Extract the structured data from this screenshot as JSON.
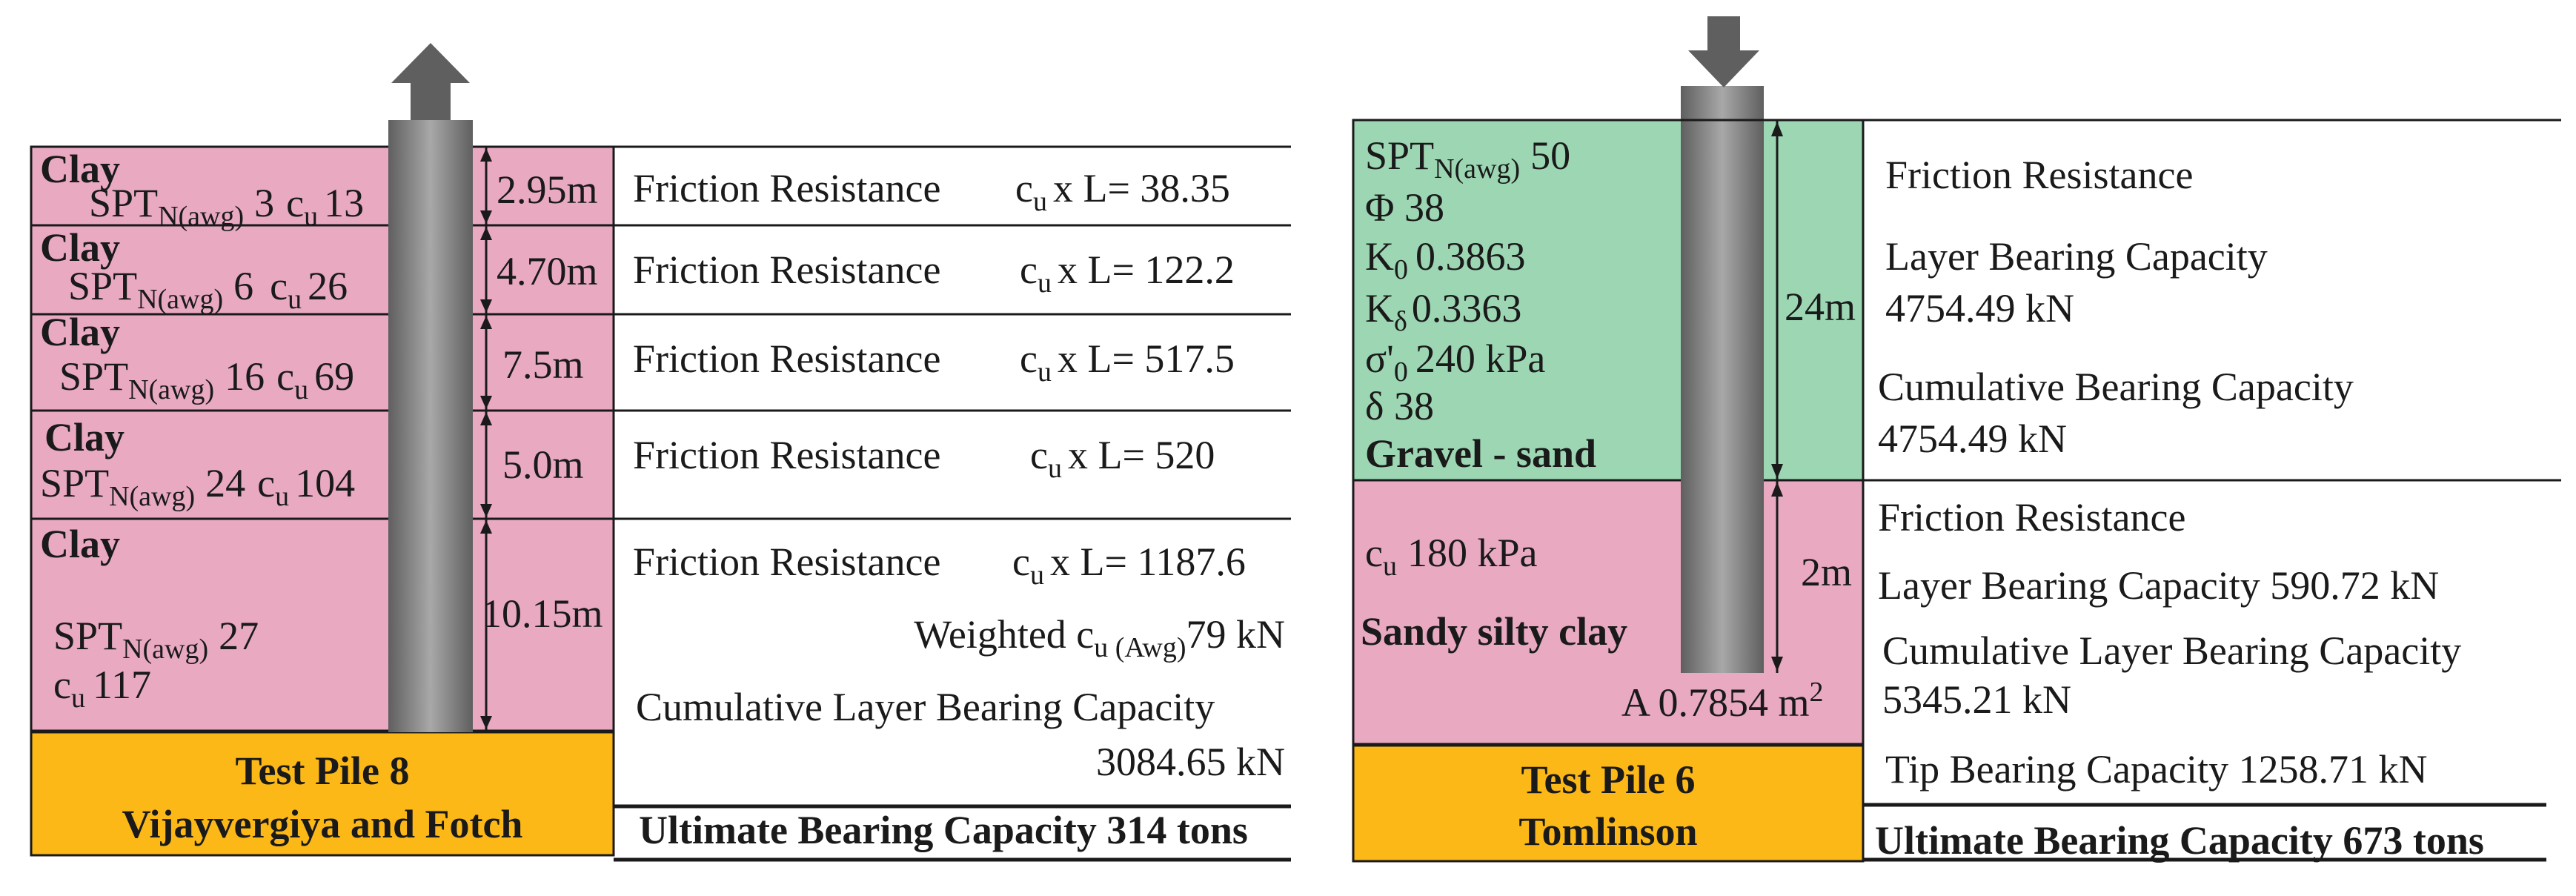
{
  "colors": {
    "clay": "#e8a9c1",
    "gravel_sand": "#9cd6b3",
    "test_pile_label": "#fbb817",
    "pile_dark": "#5f5f5f",
    "pile_light": "#a8a8a8",
    "line": "#1a1a1a"
  },
  "icons": {
    "left_arrow": "up-arrow-icon",
    "right_arrow": "down-arrow-icon"
  },
  "left_panel": {
    "layers": [
      {
        "soil": "Clay",
        "spt_label": "SPT",
        "spt_sub": "N(awg)",
        "spt_value": "3",
        "cu_label": "c",
        "cu_sub": "u",
        "cu_value": "13",
        "depth": "2.95m",
        "friction_label": "Friction Resistance",
        "formula_c": "c",
        "formula_sub": "u",
        "formula_rest": "x L= 38.35"
      },
      {
        "soil": "Clay",
        "spt_label": "SPT",
        "spt_sub": "N(awg)",
        "spt_value": "6",
        "cu_label": "c",
        "cu_sub": "u",
        "cu_value": "26",
        "depth": "4.70m",
        "friction_label": "Friction Resistance",
        "formula_c": "c",
        "formula_sub": "u",
        "formula_rest": "x L= 122.2"
      },
      {
        "soil": "Clay",
        "spt_label": "SPT",
        "spt_sub": "N(awg)",
        "spt_value": "16",
        "cu_label": "c",
        "cu_sub": "u",
        "cu_value": "69",
        "depth": "7.5m",
        "friction_label": "Friction Resistance",
        "formula_c": "c",
        "formula_sub": "u",
        "formula_rest": "x L= 517.5"
      },
      {
        "soil": "Clay",
        "spt_label": "SPT",
        "spt_sub": "N(awg)",
        "spt_value": "24",
        "cu_label": "c",
        "cu_sub": "u",
        "cu_value": "104",
        "depth": "5.0m",
        "friction_label": "Friction Resistance",
        "formula_c": "c",
        "formula_sub": "u",
        "formula_rest": "x L= 520"
      },
      {
        "soil": "Clay",
        "spt_label": "SPT",
        "spt_sub": "N(awg)",
        "spt_value": "27",
        "cu_label": "c",
        "cu_sub": "u",
        "cu_value": "117",
        "depth": "10.15m",
        "friction_label": "Friction Resistance",
        "formula_c": "c",
        "formula_sub": "u",
        "formula_rest": "x L= 1187.6"
      }
    ],
    "weighted_label": "Weighted c",
    "weighted_sub": "u (Awg)",
    "weighted_value": "79 kN",
    "cumulative_label": "Cumulative Layer Bearing Capacity",
    "cumulative_value": "3084.65 kN",
    "test_pile_name": "Test Pile 8",
    "method": "Vijayvergiya and Fotch",
    "ultimate": "Ultimate Bearing Capacity 314 tons"
  },
  "right_panel": {
    "gravel": {
      "spt_label": "SPT",
      "spt_sub": "N(awg)",
      "spt_value": "50",
      "phi": "Φ 38",
      "k0_label": "K",
      "k0_sub": "0",
      "k0_value": "0.3863",
      "kd_label": "K",
      "kd_sub": "δ",
      "kd_value": "0.3363",
      "sigma_label": "σ'",
      "sigma_sub": "0",
      "sigma_value": "240 kPa",
      "delta": "δ 38",
      "soil": "Gravel - sand",
      "depth": "24m",
      "friction_label": "Friction Resistance",
      "layer_bearing_label": "Layer Bearing Capacity",
      "layer_bearing_value": "4754.49 kN",
      "cumulative_label": "Cumulative Bearing Capacity",
      "cumulative_value": "4754.49 kN"
    },
    "clay": {
      "cu_label": "c",
      "cu_sub": "u",
      "cu_value": "180 kPa",
      "soil": "Sandy silty clay",
      "depth": "2m",
      "area_label": "A 0.7854 m",
      "area_sup": "2",
      "friction_label": "Friction Resistance",
      "layer_bearing": "Layer Bearing Capacity 590.72 kN",
      "cumulative_label": "Cumulative Layer Bearing Capacity",
      "cumulative_value": "5345.21 kN"
    },
    "tip_bearing": "Tip Bearing Capacity 1258.71 kN",
    "test_pile_name": "Test Pile 6",
    "method": "Tomlinson",
    "ultimate": "Ultimate Bearing Capacity 673 tons"
  }
}
